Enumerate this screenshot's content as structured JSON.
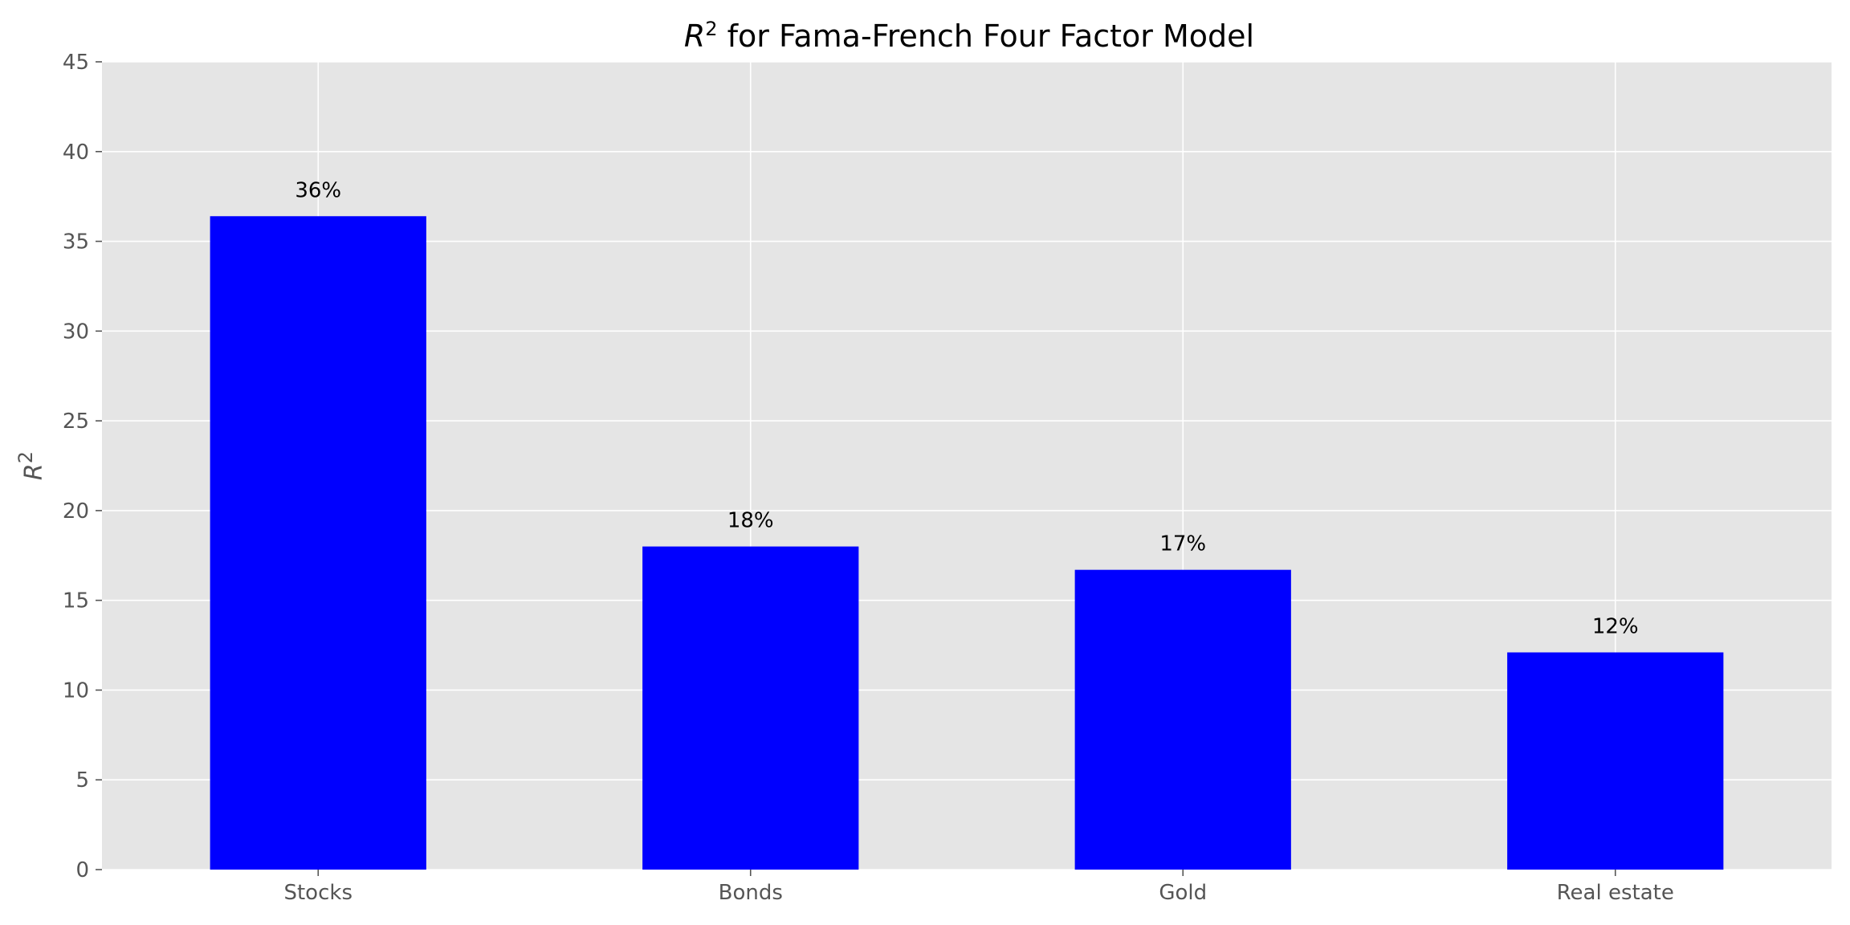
{
  "chart_data": {
    "type": "bar",
    "title": {
      "base": "R",
      "superscript": "2",
      "rest": " for Fama-French Four Factor Model"
    },
    "ylabel": {
      "base": "R",
      "superscript": "2"
    },
    "xlabel": "",
    "categories": [
      "Stocks",
      "Bonds",
      "Gold",
      "Real estate"
    ],
    "values": [
      36.4,
      18.0,
      16.7,
      12.1
    ],
    "data_labels": [
      "36%",
      "18%",
      "17%",
      "12%"
    ],
    "ylim": [
      0,
      45
    ],
    "yticks": [
      0,
      5,
      10,
      15,
      20,
      25,
      30,
      35,
      40,
      45
    ],
    "grid": true,
    "legend": "none",
    "colors": {
      "bar": "#0000ff",
      "background": "#e5e5e5",
      "grid": "#ffffff",
      "tick_text": "#555555"
    }
  }
}
